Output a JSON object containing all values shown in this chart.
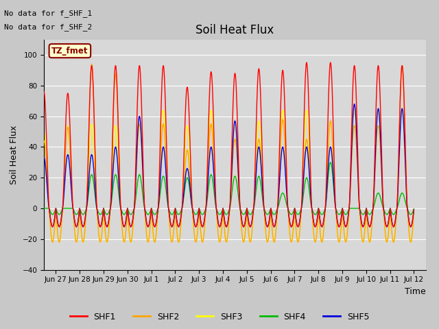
{
  "title": "Soil Heat Flux",
  "ylabel": "Soil Heat Flux",
  "xlabel": "Time",
  "ylim": [
    -40,
    110
  ],
  "yticks": [
    -40,
    -20,
    0,
    20,
    40,
    60,
    80,
    100
  ],
  "fig_facecolor": "#c8c8c8",
  "axes_facecolor": "#d8d8d8",
  "text_top_left_line1": "No data for f_SHF_1",
  "text_top_left_line2": "No data for f_SHF_2",
  "tz_label": "TZ_fmet",
  "colors": {
    "SHF1": "#ff0000",
    "SHF2": "#ffa500",
    "SHF3": "#ffff00",
    "SHF4": "#00bb00",
    "SHF5": "#0000dd"
  },
  "x_tick_labels": [
    "Jun 27",
    "Jun 28",
    "Jun 29",
    "Jun 30",
    "Jul 1",
    "Jul 2",
    "Jul 3",
    "Jul 4",
    "Jul 5",
    "Jul 6",
    "Jul 7",
    "Jul 8",
    "Jul 9",
    "Jul 10",
    "Jul 11",
    "Jul 12"
  ],
  "legend_entries": [
    "SHF1",
    "SHF2",
    "SHF3",
    "SHF4",
    "SHF5"
  ],
  "shf1_day_amps": [
    76,
    75,
    93,
    93,
    93,
    93,
    79,
    89,
    88,
    91,
    90,
    95,
    95,
    93,
    93,
    93
  ],
  "shf2_day_amps": [
    44,
    53,
    94,
    88,
    55,
    55,
    38,
    55,
    45,
    45,
    58,
    45,
    57,
    54,
    54,
    93
  ],
  "shf3_day_amps": [
    50,
    54,
    55,
    54,
    55,
    64,
    54,
    64,
    57,
    57,
    64,
    64,
    57,
    64,
    64,
    65
  ],
  "shf4_day_amps": [
    0,
    0,
    22,
    22,
    22,
    21,
    20,
    22,
    21,
    21,
    10,
    20,
    30,
    0,
    10,
    10
  ],
  "shf5_day_amps": [
    33,
    35,
    35,
    40,
    60,
    40,
    26,
    40,
    57,
    40,
    40,
    40,
    40,
    68,
    65,
    65
  ],
  "shf1_night": -12,
  "shf2_night": -22,
  "shf3_night": -22,
  "shf4_night": -4,
  "shf5_night": -12,
  "n_days": 16,
  "pts_per_day": 144
}
